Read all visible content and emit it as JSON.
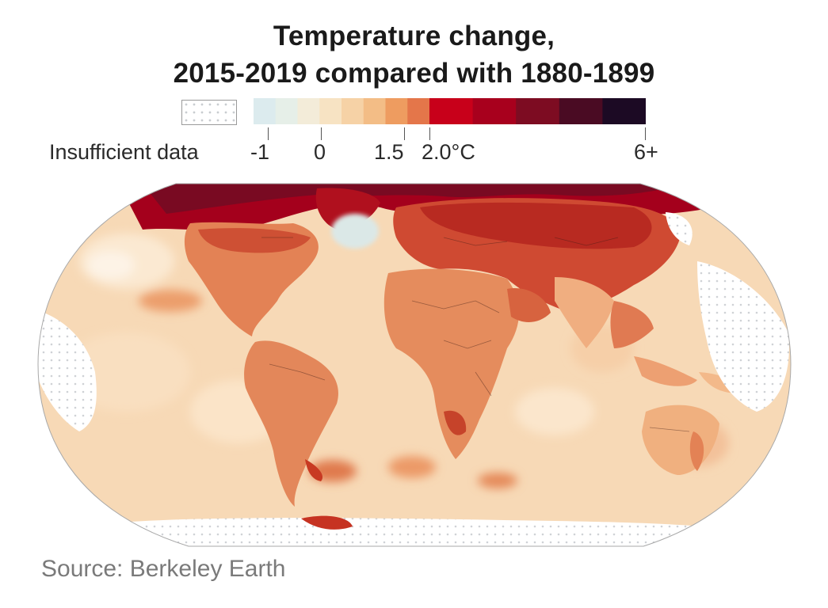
{
  "title_line1": "Temperature change,",
  "title_line2": "2015-2019 compared with 1880-1899",
  "legend": {
    "nodata_label": "Insufficient data",
    "ticks": [
      "-1",
      "0",
      "1.5",
      "2.0°C",
      "6+"
    ],
    "colors": [
      "#dcebee",
      "#e6efe8",
      "#f3ecd9",
      "#f7e3c3",
      "#f6d2a6",
      "#f3bd86",
      "#ee9c60",
      "#e4764a",
      "#c8001a",
      "#a8001d",
      "#7d0c22",
      "#4a0b23",
      "#1c0a24"
    ]
  },
  "map": {
    "colors": {
      "ocean": "#f7d9b6",
      "ocean_light": "#fbe6cc",
      "land": "#ec9e6c",
      "land_warm": "#de7a4e",
      "arctic": "#a4001c",
      "arctic_dark": "#6e0d24",
      "cool_spot": "#dde9e8",
      "nodata": "#ffffff"
    }
  },
  "source": "Source: Berkeley Earth"
}
